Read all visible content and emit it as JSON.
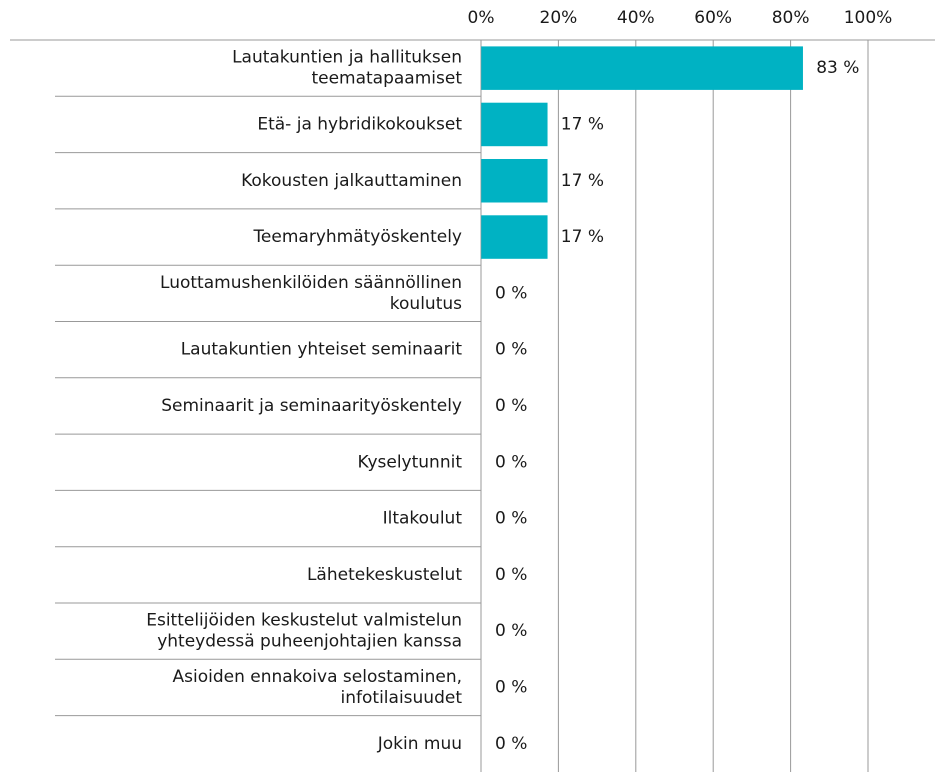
{
  "chart_data": {
    "type": "barh",
    "categories": [
      "Lautakuntien ja hallituksen\nteematapaamiset",
      "Etä- ja hybridikokoukset",
      "Kokousten jalkauttaminen",
      "Teemaryhmätyöskentely",
      "Luottamushenkilöiden säännöllinen\nkoulutus",
      "Lautakuntien yhteiset seminaarit",
      "Seminaarit ja seminaarityöskentely",
      "Kyselytunnit",
      "Iltakoulut",
      "Lähetekeskustelut",
      "Esittelijöiden keskustelut valmistelun\nyhteydessä puheenjohtajien kanssa",
      "Asioiden ennakoiva selostaminen,\ninfotilaisuudet",
      "Jokin muu"
    ],
    "values": [
      83,
      17,
      17,
      17,
      0,
      0,
      0,
      0,
      0,
      0,
      0,
      0,
      0
    ],
    "value_labels": [
      "83 %",
      "17 %",
      "17 %",
      "17 %",
      "0 %",
      "0 %",
      "0 %",
      "0 %",
      "0 %",
      "0 %",
      "0 %",
      "0 %",
      "0 %"
    ],
    "color": "#00b2c3",
    "xlim": [
      0,
      100
    ],
    "xticks": [
      {
        "value": 0,
        "label": "0%"
      },
      {
        "value": 20,
        "label": "20%"
      },
      {
        "value": 40,
        "label": "40%"
      },
      {
        "value": 60,
        "label": "60%"
      },
      {
        "value": 80,
        "label": "80%"
      },
      {
        "value": 100,
        "label": "100%"
      }
    ],
    "grid": true
  }
}
